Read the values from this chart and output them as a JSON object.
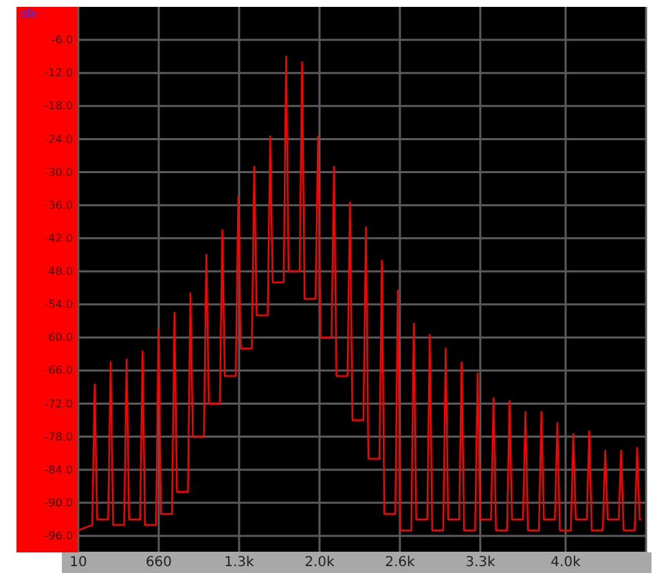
{
  "chart_data": {
    "type": "line",
    "ylabel": "dBr",
    "x": [
      10,
      122,
      142,
      162,
      251,
      271,
      291,
      380,
      400,
      420,
      509,
      529,
      549,
      638,
      658,
      678,
      767,
      787,
      807,
      896,
      916,
      936,
      1025,
      1045,
      1065,
      1154,
      1174,
      1194,
      1283,
      1303,
      1323,
      1412,
      1432,
      1452,
      1541,
      1561,
      1581,
      1670,
      1690,
      1710,
      1799,
      1819,
      1839,
      1928,
      1948,
      1968,
      2057,
      2077,
      2097,
      2186,
      2206,
      2226,
      2315,
      2335,
      2355,
      2444,
      2464,
      2484,
      2573,
      2593,
      2613,
      2702,
      2722,
      2742,
      2831,
      2851,
      2871,
      2960,
      2980,
      3000,
      3089,
      3109,
      3129,
      3218,
      3238,
      3258,
      3347,
      3367,
      3387,
      3476,
      3496,
      3516,
      3605,
      3625,
      3645,
      3734,
      3754,
      3774,
      3863,
      3883,
      3903,
      3992,
      4012,
      4032,
      4121,
      4141,
      4161,
      4250,
      4270,
      4290,
      4379,
      4399,
      4419,
      4508,
      4528,
      4548,
      4560
    ],
    "series": [
      {
        "color": "#ff0000",
        "values": [
          -95,
          -94,
          -68.5,
          -93,
          -93,
          -64.5,
          -94,
          -94,
          -64,
          -93,
          -93,
          -62.5,
          -94,
          -94,
          -58.5,
          -92,
          -92,
          -55.5,
          -88,
          -88,
          -52,
          -78,
          -78,
          -45,
          -72,
          -72,
          -40.5,
          -67,
          -67,
          -34.5,
          -62,
          -62,
          -29,
          -56,
          -56,
          -23.5,
          -50,
          -50,
          -9,
          -48,
          -48,
          -10,
          -53,
          -53,
          -23.5,
          -60,
          -60,
          -29,
          -67,
          -67,
          -35.5,
          -75,
          -75,
          -40,
          -82,
          -82,
          -46,
          -92,
          -92,
          -51.5,
          -95,
          -95,
          -57.5,
          -93,
          -93,
          -59.5,
          -95,
          -95,
          -62,
          -93,
          -93,
          -64.5,
          -95,
          -95,
          -66.5,
          -93,
          -93,
          -71,
          -95,
          -95,
          -71.5,
          -93,
          -93,
          -73.5,
          -95,
          -95,
          -73.5,
          -93,
          -93,
          -75.5,
          -95,
          -95,
          -77.5,
          -93,
          -93,
          -77,
          -95,
          -95,
          -80.5,
          -93,
          -93,
          -80.5,
          -95,
          -95,
          -80,
          -93,
          -93
        ]
      }
    ],
    "xlim": [
      10,
      4600
    ],
    "xticks": [
      10,
      660,
      {
        "value": 1310,
        "label": "1.3k"
      },
      {
        "value": 1960,
        "label": "2.0k"
      },
      {
        "value": 2610,
        "label": "2.6k"
      },
      {
        "value": 3260,
        "label": "3.3k"
      },
      {
        "value": 3950,
        "label": "4.0k"
      },
      {
        "value": 4600,
        "label": null
      }
    ],
    "ylim": [
      -99,
      0
    ],
    "yticks": [
      {
        "value": -6,
        "label": "-6.0"
      },
      {
        "value": -12,
        "label": "-12.0"
      },
      {
        "value": -18,
        "label": "-18.0"
      },
      {
        "value": -24,
        "label": "-24.0"
      },
      {
        "value": -30,
        "label": "-30.0"
      },
      {
        "value": -36,
        "label": "-36.0"
      },
      {
        "value": -42,
        "label": "-42.0"
      },
      {
        "value": -48,
        "label": "-48.0"
      },
      {
        "value": -54,
        "label": "-54.0"
      },
      {
        "value": -60,
        "label": "-60.0"
      },
      {
        "value": -66,
        "label": "-66.0"
      },
      {
        "value": -72,
        "label": "-72.0"
      },
      {
        "value": -78,
        "label": "-78.0"
      },
      {
        "value": -84,
        "label": "-84.0"
      },
      {
        "value": -90,
        "label": "-90.0"
      },
      {
        "value": -96,
        "label": "-96.0"
      }
    ],
    "grid": true
  }
}
